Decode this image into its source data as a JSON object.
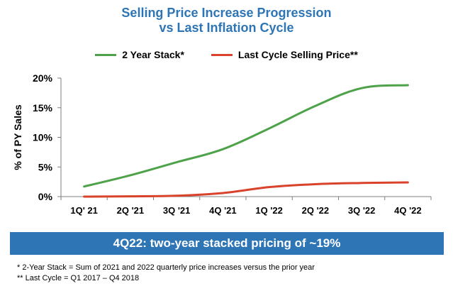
{
  "chart_data": {
    "type": "line",
    "title": [
      "Selling Price Increase Progression",
      "vs Last Inflation Cycle"
    ],
    "categories": [
      "1Q' 21",
      "2Q '21",
      "3Q '21",
      "4Q '21",
      "1Q '22",
      "2Q '22",
      "3Q '22",
      "4Q '22"
    ],
    "ylabel": "% of PY Sales",
    "xlabel": "",
    "ylim": [
      0,
      20
    ],
    "yticks": [
      "0%",
      "5%",
      "10%",
      "15%",
      "20%"
    ],
    "ytick_values": [
      0,
      5,
      10,
      15,
      20
    ],
    "legend_position": "top-center",
    "series": [
      {
        "name": "2 Year Stack*",
        "color": "#4ea24a",
        "values": [
          1.7,
          3.6,
          5.8,
          8.0,
          11.5,
          15.3,
          18.3,
          18.8
        ]
      },
      {
        "name": "Last Cycle Selling Price**",
        "color": "#d9422b",
        "values": [
          0.0,
          0.05,
          0.15,
          0.6,
          1.6,
          2.1,
          2.3,
          2.4
        ]
      }
    ]
  },
  "banner": {
    "text": "4Q22: two-year stacked pricing of ~19%",
    "color": "#2e75b6"
  },
  "footnotes": [
    "* 2-Year Stack = Sum of 2021 and 2022 quarterly price increases versus the prior year",
    "** Last Cycle = Q1 2017 – Q4 2018"
  ]
}
